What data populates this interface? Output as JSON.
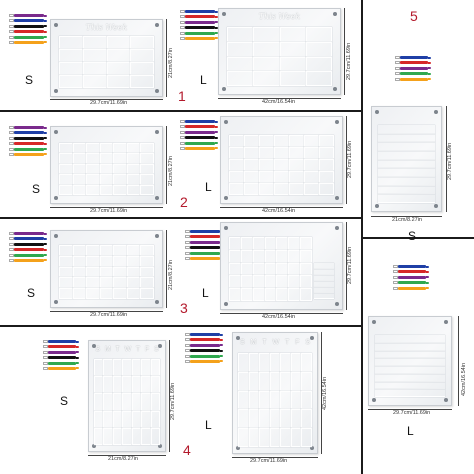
{
  "colors": {
    "divider": "#1b1b1b",
    "accent_number": "#b3192b",
    "board": "#eef0f3"
  },
  "marker_colors": [
    "#7a2a8c",
    "#1f3fa6",
    "#111111",
    "#d62828",
    "#2fa84f",
    "#f4a11b"
  ],
  "marker_colors_short": [
    "#1f3fa6",
    "#d62828",
    "#7a2a8c",
    "#2fa84f",
    "#f4a11b"
  ],
  "options": [
    {
      "number": "1",
      "small": {
        "size": "S",
        "width": "29.7cm/11.69in",
        "height": "21cm/8.27in",
        "title": "This Week"
      },
      "large": {
        "size": "L",
        "width": "42cm/16.54in",
        "height": "29.7cm/11.69in",
        "title": "This Week"
      }
    },
    {
      "number": "2",
      "small": {
        "size": "S",
        "width": "29.7cm/11.69in",
        "height": "21cm/8.27in"
      },
      "large": {
        "size": "L",
        "width": "42cm/16.54in",
        "height": "29.7cm/11.69in"
      }
    },
    {
      "number": "3",
      "small": {
        "size": "S",
        "width": "29.7cm/11.69in",
        "height": "21cm/8.27in"
      },
      "large": {
        "size": "L",
        "width": "42cm/16.54in",
        "height": "29.7cm/11.69in"
      }
    },
    {
      "number": "4",
      "small": {
        "size": "S",
        "width": "21cm/8.27in",
        "height": "29.7cm/11.69in",
        "days": [
          "S",
          "M",
          "T",
          "W",
          "T",
          "F",
          "S"
        ]
      },
      "large": {
        "size": "L",
        "width": "29.7cm/11.69in",
        "height": "42cm/16.54in",
        "days": [
          "S",
          "M",
          "T",
          "W",
          "T",
          "F",
          "S"
        ]
      }
    },
    {
      "number": "5",
      "small": {
        "size": "S",
        "width": "21cm/8.27in",
        "height": "29.7cm/11.69in"
      },
      "large": {
        "size": "L",
        "width": "29.7cm/11.69in",
        "height": "42cm/16.54in"
      }
    }
  ]
}
